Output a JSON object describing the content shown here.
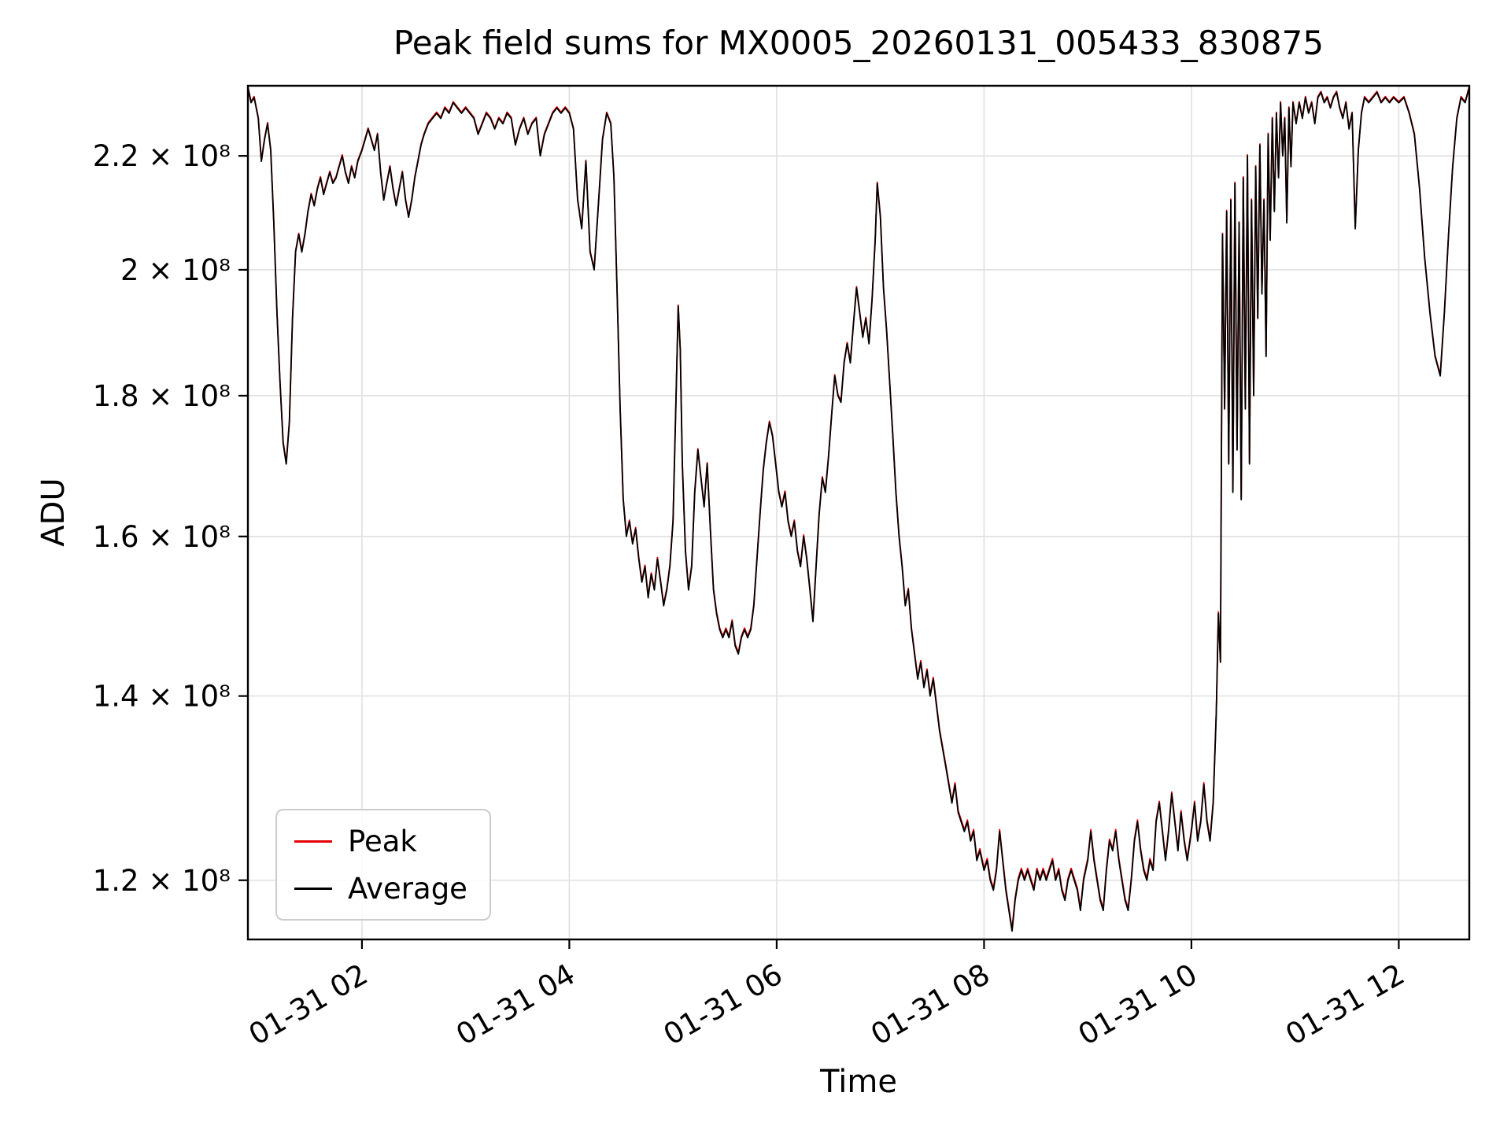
{
  "chart_data": {
    "type": "line",
    "title": "Peak field sums for MX0005_20260131_005433_830875",
    "xlabel": "Time",
    "ylabel": "ADU",
    "y_scale": "log",
    "grid": true,
    "legend_position": "lower left",
    "x_range_hours": [
      0.9,
      12.68
    ],
    "y_range_adu": [
      114200000,
      233300000
    ],
    "x_ticks": [
      {
        "hour": 2,
        "label": "01-31 02"
      },
      {
        "hour": 4,
        "label": "01-31 04"
      },
      {
        "hour": 6,
        "label": "01-31 06"
      },
      {
        "hour": 8,
        "label": "01-31 08"
      },
      {
        "hour": 10,
        "label": "01-31 10"
      },
      {
        "hour": 12,
        "label": "01-31 12"
      }
    ],
    "y_ticks": [
      {
        "value": 220000000,
        "label": "2.2 × 10⁸"
      },
      {
        "value": 200000000,
        "label": "2 × 10⁸"
      },
      {
        "value": 180000000,
        "label": "1.8 × 10⁸"
      },
      {
        "value": 160000000,
        "label": "1.6 × 10⁸"
      },
      {
        "value": 140000000,
        "label": "1.4 × 10⁸"
      },
      {
        "value": 120000000,
        "label": "1.2 × 10⁸"
      }
    ],
    "series": [
      {
        "name": "Peak",
        "color": "#e60000",
        "offset_e8": 0.002
      },
      {
        "name": "Average",
        "color": "#000000",
        "offset_e8": 0.0
      }
    ],
    "x_hours": [
      0.9,
      0.93,
      0.96,
      1.0,
      1.03,
      1.06,
      1.09,
      1.12,
      1.15,
      1.18,
      1.21,
      1.24,
      1.27,
      1.3,
      1.33,
      1.36,
      1.39,
      1.42,
      1.45,
      1.48,
      1.51,
      1.54,
      1.57,
      1.6,
      1.63,
      1.66,
      1.69,
      1.72,
      1.75,
      1.78,
      1.81,
      1.84,
      1.87,
      1.9,
      1.93,
      1.96,
      2.0,
      2.03,
      2.06,
      2.09,
      2.12,
      2.15,
      2.18,
      2.21,
      2.24,
      2.27,
      2.3,
      2.33,
      2.36,
      2.39,
      2.42,
      2.45,
      2.48,
      2.51,
      2.54,
      2.57,
      2.6,
      2.64,
      2.68,
      2.72,
      2.76,
      2.8,
      2.84,
      2.88,
      2.92,
      2.96,
      3.0,
      3.04,
      3.08,
      3.12,
      3.16,
      3.2,
      3.24,
      3.28,
      3.32,
      3.36,
      3.4,
      3.44,
      3.48,
      3.52,
      3.56,
      3.6,
      3.64,
      3.68,
      3.72,
      3.76,
      3.8,
      3.84,
      3.88,
      3.92,
      3.96,
      4.0,
      4.04,
      4.08,
      4.12,
      4.16,
      4.2,
      4.24,
      4.28,
      4.32,
      4.36,
      4.4,
      4.43,
      4.46,
      4.49,
      4.52,
      4.55,
      4.58,
      4.61,
      4.64,
      4.67,
      4.7,
      4.73,
      4.76,
      4.79,
      4.82,
      4.85,
      4.88,
      4.91,
      4.94,
      4.97,
      5.0,
      5.03,
      5.05,
      5.07,
      5.09,
      5.12,
      5.15,
      5.18,
      5.21,
      5.24,
      5.27,
      5.3,
      5.33,
      5.36,
      5.39,
      5.42,
      5.45,
      5.48,
      5.51,
      5.54,
      5.57,
      5.6,
      5.63,
      5.66,
      5.69,
      5.72,
      5.75,
      5.78,
      5.81,
      5.84,
      5.87,
      5.9,
      5.93,
      5.96,
      5.99,
      6.02,
      6.05,
      6.08,
      6.11,
      6.14,
      6.17,
      6.2,
      6.23,
      6.26,
      6.29,
      6.32,
      6.35,
      6.38,
      6.41,
      6.44,
      6.47,
      6.5,
      6.53,
      6.56,
      6.59,
      6.62,
      6.65,
      6.68,
      6.71,
      6.74,
      6.77,
      6.8,
      6.83,
      6.86,
      6.89,
      6.92,
      6.95,
      6.97,
      7.0,
      7.03,
      7.06,
      7.09,
      7.12,
      7.15,
      7.18,
      7.21,
      7.24,
      7.27,
      7.3,
      7.33,
      7.36,
      7.39,
      7.42,
      7.45,
      7.48,
      7.51,
      7.54,
      7.57,
      7.6,
      7.63,
      7.66,
      7.69,
      7.72,
      7.75,
      7.78,
      7.81,
      7.84,
      7.87,
      7.9,
      7.93,
      7.96,
      8.0,
      8.03,
      8.06,
      8.09,
      8.12,
      8.15,
      8.18,
      8.21,
      8.24,
      8.27,
      8.3,
      8.33,
      8.36,
      8.39,
      8.42,
      8.45,
      8.48,
      8.51,
      8.54,
      8.57,
      8.6,
      8.63,
      8.66,
      8.69,
      8.72,
      8.75,
      8.78,
      8.81,
      8.84,
      8.87,
      8.9,
      8.93,
      8.96,
      9.0,
      9.03,
      9.06,
      9.09,
      9.12,
      9.15,
      9.18,
      9.21,
      9.24,
      9.27,
      9.3,
      9.33,
      9.36,
      9.39,
      9.42,
      9.45,
      9.48,
      9.51,
      9.54,
      9.57,
      9.6,
      9.63,
      9.66,
      9.69,
      9.72,
      9.75,
      9.78,
      9.81,
      9.84,
      9.87,
      9.9,
      9.93,
      9.96,
      10.0,
      10.03,
      10.06,
      10.09,
      10.12,
      10.15,
      10.18,
      10.21,
      10.24,
      10.26,
      10.28,
      10.3,
      10.32,
      10.34,
      10.36,
      10.38,
      10.4,
      10.42,
      10.44,
      10.46,
      10.48,
      10.5,
      10.52,
      10.54,
      10.56,
      10.58,
      10.6,
      10.62,
      10.64,
      10.66,
      10.68,
      10.7,
      10.72,
      10.74,
      10.76,
      10.78,
      10.8,
      10.82,
      10.84,
      10.86,
      10.88,
      10.9,
      10.92,
      10.94,
      10.96,
      10.98,
      11.01,
      11.04,
      11.07,
      11.1,
      11.13,
      11.16,
      11.19,
      11.22,
      11.25,
      11.28,
      11.31,
      11.34,
      11.37,
      11.4,
      11.43,
      11.46,
      11.49,
      11.52,
      11.55,
      11.58,
      11.61,
      11.64,
      11.67,
      11.71,
      11.75,
      11.79,
      11.83,
      11.87,
      11.91,
      11.95,
      12.0,
      12.05,
      12.1,
      12.15,
      12.2,
      12.25,
      12.3,
      12.35,
      12.4,
      12.44,
      12.48,
      12.52,
      12.56,
      12.6,
      12.64,
      12.68
    ],
    "avg_values_e8": [
      2.33,
      2.3,
      2.31,
      2.27,
      2.19,
      2.23,
      2.26,
      2.21,
      2.08,
      1.93,
      1.82,
      1.73,
      1.7,
      1.76,
      1.92,
      2.03,
      2.06,
      2.03,
      2.06,
      2.1,
      2.13,
      2.11,
      2.14,
      2.16,
      2.13,
      2.15,
      2.17,
      2.15,
      2.16,
      2.18,
      2.2,
      2.17,
      2.15,
      2.18,
      2.16,
      2.19,
      2.21,
      2.23,
      2.25,
      2.23,
      2.21,
      2.24,
      2.17,
      2.12,
      2.15,
      2.18,
      2.14,
      2.11,
      2.14,
      2.17,
      2.12,
      2.09,
      2.12,
      2.16,
      2.19,
      2.22,
      2.24,
      2.26,
      2.27,
      2.28,
      2.27,
      2.29,
      2.28,
      2.3,
      2.29,
      2.28,
      2.29,
      2.28,
      2.27,
      2.24,
      2.26,
      2.28,
      2.27,
      2.25,
      2.27,
      2.26,
      2.28,
      2.27,
      2.22,
      2.25,
      2.27,
      2.24,
      2.26,
      2.27,
      2.2,
      2.24,
      2.26,
      2.28,
      2.29,
      2.28,
      2.29,
      2.28,
      2.25,
      2.12,
      2.07,
      2.19,
      2.03,
      2.0,
      2.11,
      2.23,
      2.28,
      2.26,
      2.16,
      1.97,
      1.78,
      1.65,
      1.6,
      1.62,
      1.59,
      1.61,
      1.57,
      1.54,
      1.56,
      1.52,
      1.55,
      1.53,
      1.57,
      1.54,
      1.51,
      1.53,
      1.56,
      1.62,
      1.8,
      1.94,
      1.87,
      1.7,
      1.58,
      1.53,
      1.56,
      1.66,
      1.72,
      1.68,
      1.64,
      1.7,
      1.61,
      1.53,
      1.5,
      1.48,
      1.47,
      1.48,
      1.47,
      1.49,
      1.46,
      1.45,
      1.47,
      1.48,
      1.47,
      1.48,
      1.51,
      1.57,
      1.63,
      1.69,
      1.73,
      1.76,
      1.74,
      1.7,
      1.66,
      1.64,
      1.66,
      1.62,
      1.6,
      1.62,
      1.58,
      1.56,
      1.6,
      1.57,
      1.53,
      1.49,
      1.56,
      1.63,
      1.68,
      1.66,
      1.71,
      1.77,
      1.83,
      1.8,
      1.79,
      1.85,
      1.88,
      1.85,
      1.91,
      1.97,
      1.93,
      1.89,
      1.92,
      1.88,
      1.95,
      2.05,
      2.15,
      2.09,
      1.97,
      1.9,
      1.82,
      1.74,
      1.66,
      1.6,
      1.56,
      1.51,
      1.53,
      1.48,
      1.45,
      1.42,
      1.44,
      1.41,
      1.43,
      1.4,
      1.42,
      1.39,
      1.36,
      1.34,
      1.32,
      1.3,
      1.28,
      1.3,
      1.27,
      1.26,
      1.25,
      1.26,
      1.24,
      1.25,
      1.22,
      1.23,
      1.21,
      1.22,
      1.2,
      1.19,
      1.21,
      1.25,
      1.22,
      1.19,
      1.17,
      1.15,
      1.18,
      1.2,
      1.21,
      1.2,
      1.21,
      1.2,
      1.19,
      1.21,
      1.2,
      1.21,
      1.2,
      1.21,
      1.22,
      1.2,
      1.21,
      1.19,
      1.18,
      1.2,
      1.21,
      1.2,
      1.19,
      1.17,
      1.2,
      1.22,
      1.25,
      1.22,
      1.2,
      1.18,
      1.17,
      1.21,
      1.24,
      1.23,
      1.25,
      1.22,
      1.2,
      1.18,
      1.17,
      1.2,
      1.24,
      1.26,
      1.23,
      1.21,
      1.2,
      1.22,
      1.21,
      1.26,
      1.28,
      1.25,
      1.22,
      1.25,
      1.29,
      1.26,
      1.23,
      1.27,
      1.24,
      1.22,
      1.25,
      1.28,
      1.24,
      1.26,
      1.3,
      1.26,
      1.24,
      1.28,
      1.38,
      1.5,
      1.44,
      2.06,
      1.78,
      2.1,
      1.7,
      2.12,
      1.66,
      2.15,
      1.72,
      2.08,
      1.65,
      2.16,
      1.78,
      2.2,
      1.7,
      2.12,
      1.8,
      2.18,
      1.92,
      2.22,
      1.96,
      2.12,
      1.86,
      2.24,
      2.05,
      2.27,
      2.1,
      2.28,
      2.16,
      2.3,
      2.2,
      2.27,
      2.08,
      2.29,
      2.18,
      2.3,
      2.26,
      2.3,
      2.27,
      2.31,
      2.28,
      2.3,
      2.26,
      2.31,
      2.32,
      2.3,
      2.31,
      2.29,
      2.31,
      2.32,
      2.29,
      2.27,
      2.3,
      2.25,
      2.28,
      2.07,
      2.21,
      2.28,
      2.31,
      2.3,
      2.31,
      2.32,
      2.3,
      2.31,
      2.3,
      2.31,
      2.3,
      2.31,
      2.28,
      2.24,
      2.14,
      2.02,
      1.93,
      1.86,
      1.83,
      1.93,
      2.06,
      2.18,
      2.27,
      2.31,
      2.3,
      2.33
    ]
  }
}
